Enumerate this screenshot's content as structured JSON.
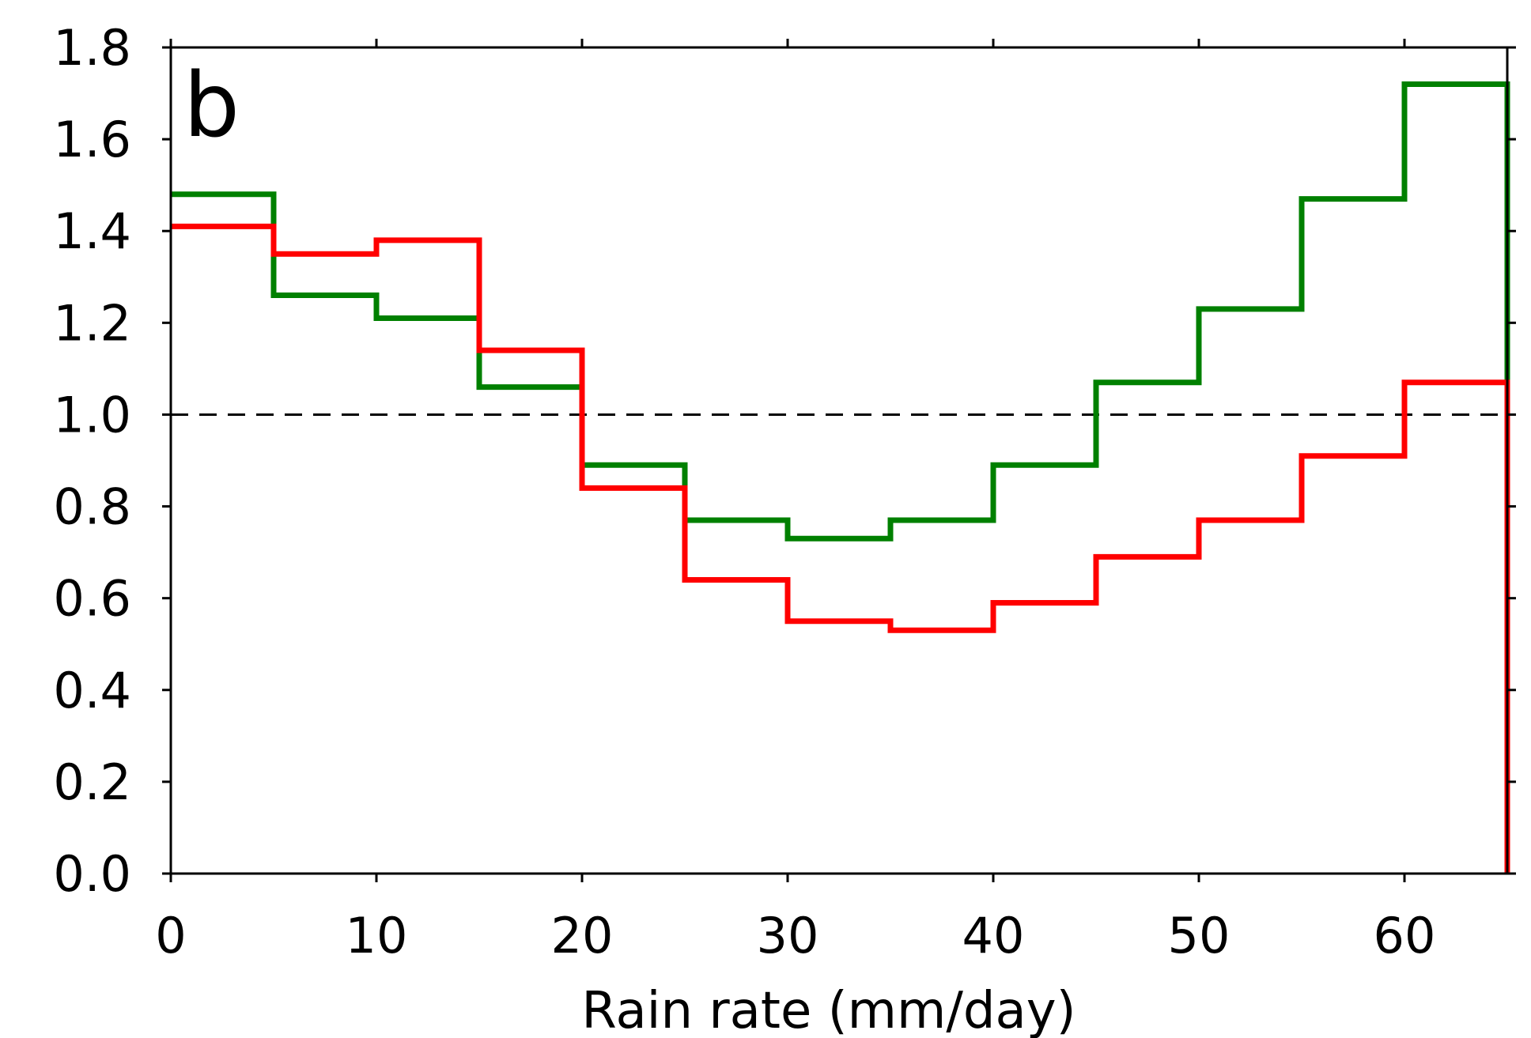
{
  "chart_data": {
    "type": "line",
    "step": "post",
    "panel_label": "b",
    "xlabel": "Rain rate (mm/day)",
    "ylabel": "",
    "xlim": [
      0,
      65
    ],
    "ylim": [
      0,
      1.8
    ],
    "xticks": [
      0,
      10,
      20,
      30,
      40,
      50,
      60
    ],
    "yticks": [
      0.0,
      0.2,
      0.4,
      0.6,
      0.8,
      1.0,
      1.2,
      1.4,
      1.6,
      1.8
    ],
    "reference_line": {
      "y": 1.0,
      "style": "dashed",
      "color": "#000000"
    },
    "grid": false,
    "series": [
      {
        "color": "#008000",
        "bin_edges": [
          0,
          5,
          10,
          15,
          20,
          25,
          30,
          35,
          40,
          45,
          50,
          55,
          60,
          65
        ],
        "values": [
          1.48,
          1.26,
          1.21,
          1.06,
          0.89,
          0.77,
          0.73,
          0.77,
          0.89,
          1.07,
          1.23,
          1.47,
          1.72
        ]
      },
      {
        "color": "#ff0000",
        "bin_edges": [
          0,
          5,
          10,
          15,
          20,
          25,
          30,
          35,
          40,
          45,
          50,
          55,
          60,
          65
        ],
        "values": [
          1.41,
          1.35,
          1.38,
          1.14,
          0.84,
          0.64,
          0.55,
          0.53,
          0.59,
          0.69,
          0.77,
          0.91,
          1.07
        ]
      }
    ]
  }
}
